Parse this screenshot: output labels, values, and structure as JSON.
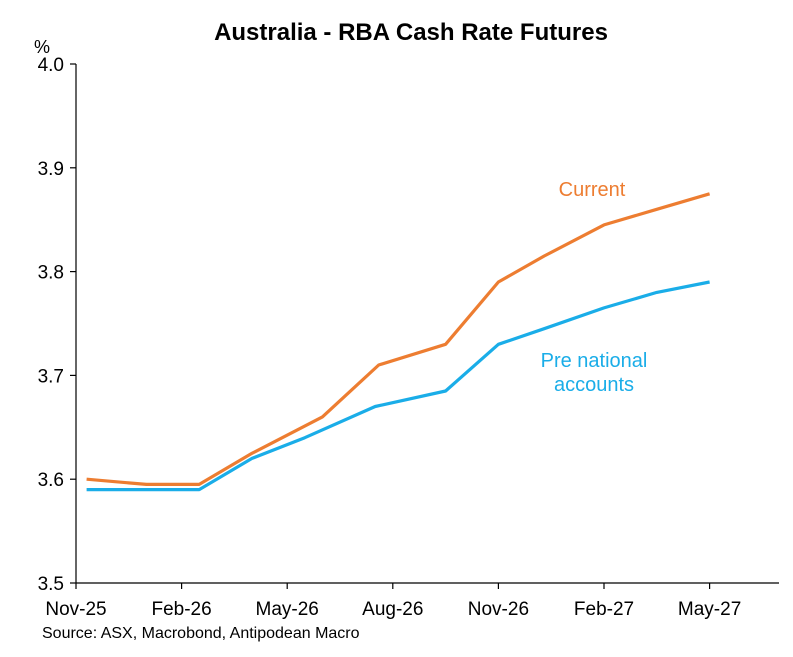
{
  "chart_data": {
    "type": "line",
    "title": "Australia - RBA Cash Rate Futures",
    "ylabel": "%",
    "xlabel": "",
    "ylim": [
      3.5,
      4.0
    ],
    "yticks": [
      "4.0",
      "3.9",
      "3.8",
      "3.7",
      "3.6",
      "3.5"
    ],
    "ytick_values": [
      4.0,
      3.9,
      3.8,
      3.7,
      3.6,
      3.5
    ],
    "xlim_months": [
      0,
      19
    ],
    "xtick_labels": [
      "Nov-25",
      "Feb-26",
      "May-26",
      "Aug-26",
      "Nov-26",
      "Feb-27",
      "May-27"
    ],
    "xtick_months": [
      0,
      3,
      6,
      9,
      12,
      15,
      18
    ],
    "x_unit": "months since Nov-25",
    "series": [
      {
        "name": "Current",
        "color": "#ED7D31",
        "x": [
          0.3,
          2.0,
          3.5,
          5.0,
          7.0,
          8.6,
          10.5,
          12.0,
          13.3,
          15.0,
          16.5,
          18.0
        ],
        "values": [
          3.6,
          3.595,
          3.595,
          3.625,
          3.66,
          3.71,
          3.73,
          3.79,
          3.815,
          3.845,
          3.86,
          3.875
        ]
      },
      {
        "name": "Pre national accounts",
        "color": "#1AADE8",
        "x": [
          0.3,
          2.0,
          3.5,
          5.0,
          6.5,
          8.5,
          10.5,
          12.0,
          13.3,
          15.0,
          16.5,
          18.0
        ],
        "values": [
          3.59,
          3.59,
          3.59,
          3.62,
          3.64,
          3.67,
          3.685,
          3.73,
          3.745,
          3.765,
          3.78,
          3.79
        ]
      }
    ],
    "annotations": [
      {
        "series": "Current",
        "lines": [
          "Current"
        ],
        "color": "#ED7D31"
      },
      {
        "series": "Pre national accounts",
        "lines": [
          "Pre national",
          "accounts"
        ],
        "color": "#1AADE8"
      }
    ],
    "source": "Source: ASX, Macrobond, Antipodean Macro",
    "axis_color": "#000000",
    "grid": false,
    "legend": "none (inline annotations)"
  }
}
